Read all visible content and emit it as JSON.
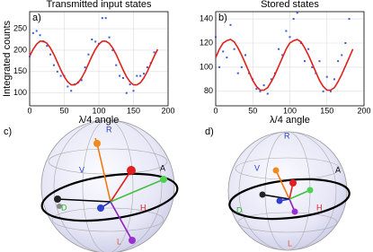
{
  "chart_data": [
    {
      "type": "scatter",
      "panel_label": "a)",
      "title": "Transmitted input states",
      "xlabel": "λ/4 angle",
      "ylabel": "Integrated counts",
      "xlim": [
        0,
        200
      ],
      "xticks": [
        0,
        50,
        100,
        150,
        200
      ],
      "ylim": [
        70,
        290
      ],
      "yticks": [
        100,
        150,
        200,
        250
      ],
      "series": [
        {
          "type": "scatter",
          "color": "#3a5ad8",
          "x": [
            0,
            5,
            10,
            15,
            20,
            25,
            30,
            35,
            40,
            45,
            50,
            55,
            60,
            65,
            70,
            75,
            80,
            85,
            90,
            95,
            100,
            105,
            110,
            115,
            120,
            125,
            130,
            135,
            140,
            145,
            150,
            155,
            160,
            165,
            170,
            175,
            180
          ],
          "values": [
            185,
            240,
            245,
            235,
            220,
            210,
            190,
            165,
            150,
            140,
            140,
            115,
            105,
            120,
            125,
            130,
            160,
            190,
            225,
            220,
            215,
            275,
            275,
            230,
            200,
            165,
            140,
            135,
            100,
            120,
            105,
            140,
            140,
            145,
            160,
            170,
            195
          ]
        },
        {
          "type": "line",
          "color": "#e0201c",
          "x": [
            0,
            5,
            10,
            15,
            20,
            25,
            30,
            35,
            40,
            45,
            50,
            55,
            60,
            65,
            70,
            75,
            80,
            85,
            90,
            95,
            100,
            105,
            110,
            115,
            120,
            125,
            130,
            135,
            140,
            145,
            150,
            155,
            160,
            165,
            170,
            175,
            180,
            185
          ],
          "values": [
            186,
            202,
            214,
            221,
            221,
            216,
            205,
            190,
            172,
            154,
            138,
            126,
            119,
            119,
            124,
            135,
            150,
            168,
            186,
            202,
            214,
            221,
            221,
            216,
            205,
            190,
            172,
            154,
            138,
            126,
            119,
            119,
            124,
            135,
            150,
            168,
            186,
            202
          ]
        }
      ]
    },
    {
      "type": "scatter",
      "panel_label": "b)",
      "title": "Stored states",
      "xlabel": "λ/4 angle",
      "xlim": [
        0,
        200
      ],
      "xticks": [
        0,
        50,
        100,
        150,
        200
      ],
      "ylim": [
        68,
        146
      ],
      "yticks": [
        80,
        100,
        120,
        140
      ],
      "series": [
        {
          "type": "scatter",
          "color": "#3a5ad8",
          "x": [
            0,
            5,
            10,
            15,
            20,
            25,
            30,
            35,
            40,
            45,
            50,
            55,
            60,
            65,
            70,
            75,
            80,
            85,
            90,
            95,
            100,
            105,
            110,
            115,
            120,
            125,
            130,
            135,
            140,
            145,
            150,
            155,
            160,
            165,
            170,
            175,
            180
          ],
          "values": [
            125,
            100,
            113,
            108,
            135,
            115,
            95,
            100,
            110,
            95,
            90,
            82,
            80,
            85,
            78,
            90,
            95,
            115,
            110,
            130,
            125,
            140,
            145,
            120,
            105,
            115,
            100,
            95,
            105,
            80,
            92,
            80,
            90,
            105,
            110,
            120,
            140
          ]
        },
        {
          "type": "line",
          "color": "#e0201c",
          "x": [
            0,
            5,
            10,
            15,
            20,
            25,
            30,
            35,
            40,
            45,
            50,
            55,
            60,
            65,
            70,
            75,
            80,
            85,
            90,
            95,
            100,
            105,
            110,
            115,
            120,
            125,
            130,
            135,
            140,
            145,
            150,
            155,
            160,
            165,
            170,
            175,
            180,
            185
          ],
          "values": [
            108,
            115,
            120,
            122,
            123,
            121,
            116,
            110,
            103,
            96,
            89,
            84,
            81,
            81,
            83,
            88,
            94,
            101,
            108,
            115,
            120,
            122,
            123,
            121,
            116,
            110,
            103,
            96,
            89,
            84,
            81,
            81,
            83,
            88,
            94,
            101,
            108,
            115
          ]
        }
      ]
    }
  ],
  "spheres": [
    {
      "label": "c)",
      "R": "R",
      "V": "V",
      "A": "A",
      "D": "D",
      "H": "H",
      "L": "L"
    },
    {
      "label": "d)",
      "R": "R",
      "V": "V",
      "A": "A",
      "D": "D",
      "H": "H",
      "L": "L"
    }
  ]
}
